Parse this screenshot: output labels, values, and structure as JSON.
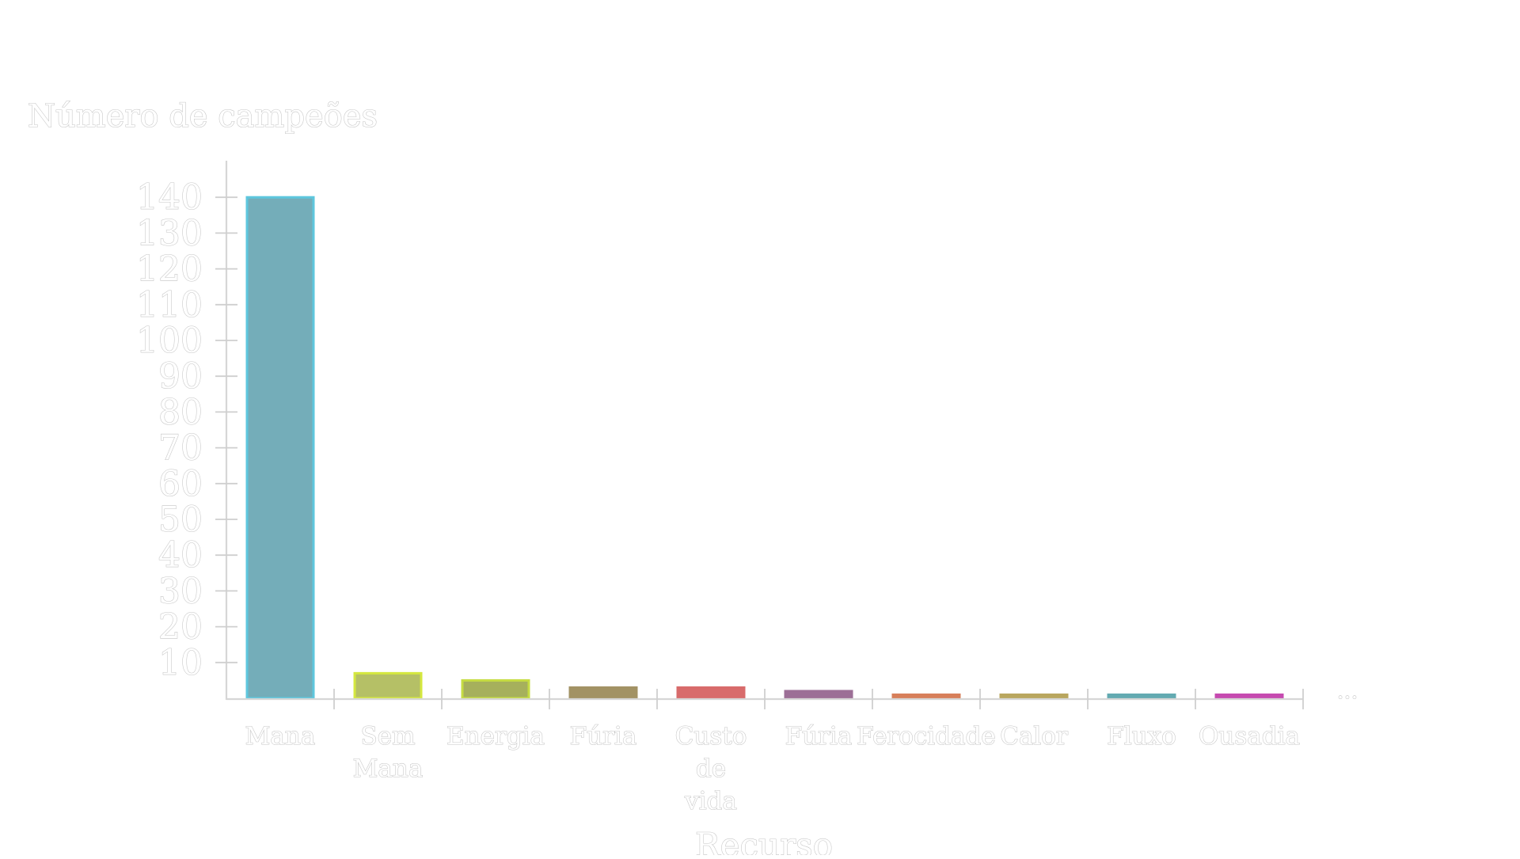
{
  "chart_data": {
    "type": "bar",
    "ylabel": "Número de campeões",
    "xlabel": "Recurso",
    "categories": [
      "Mana",
      "Sem Mana",
      "Energia",
      "Fúria",
      "Custo de vida",
      "Fúria",
      "Ferocidade",
      "Calor",
      "Fluxo",
      "Ousadia"
    ],
    "values": [
      140,
      7,
      5,
      3,
      3,
      2,
      1,
      1,
      1,
      1
    ],
    "colors": [
      "#74adb9",
      "#b5c066",
      "#a6b05c",
      "#a29264",
      "#d86b6b",
      "#9c6f96",
      "#d77f5a",
      "#b9a65e",
      "#63aab1",
      "#c64ab0"
    ],
    "edge_colors": [
      "#5ec7de",
      "#d5e83f",
      "#c6dc42",
      "#a29264",
      "#d86b6b",
      "#9c6f96",
      "#d77f5a",
      "#b9a65e",
      "#63aab1",
      "#c64ab0"
    ],
    "yticks": [
      10,
      20,
      30,
      40,
      50,
      60,
      70,
      80,
      90,
      100,
      110,
      120,
      130,
      140
    ],
    "ylim": [
      0,
      150
    ],
    "overflow_marker": "...",
    "grid": false,
    "legend": "none"
  }
}
